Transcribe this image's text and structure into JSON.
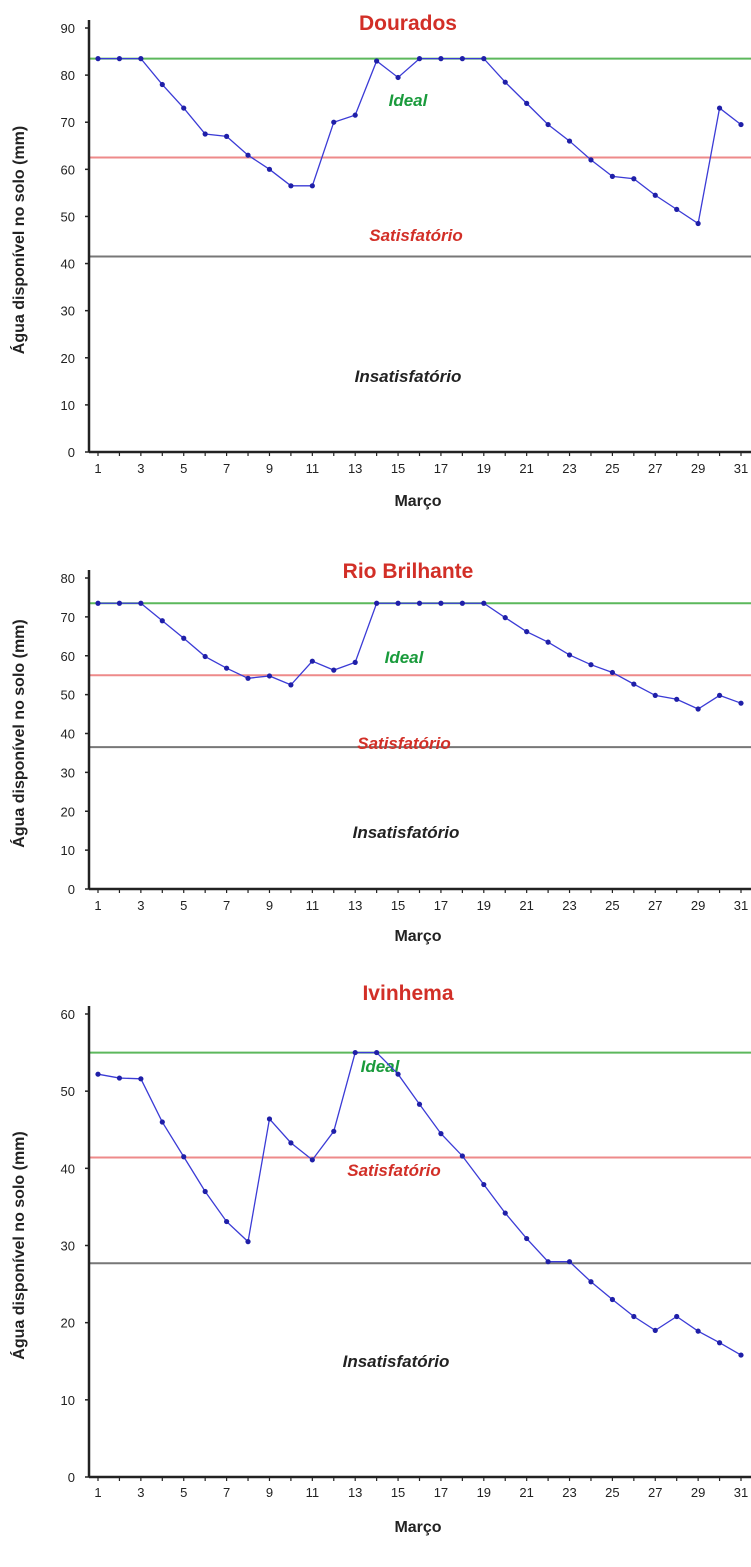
{
  "chart_data": [
    {
      "type": "line",
      "title": "Dourados",
      "xlabel": "Março",
      "ylabel": "Água disponível no solo (mm)",
      "ylim": [
        0,
        90
      ],
      "yticks": [
        0,
        10,
        20,
        30,
        40,
        50,
        60,
        70,
        80,
        90
      ],
      "xlim": [
        1,
        31
      ],
      "xticks": [
        1,
        3,
        5,
        7,
        9,
        11,
        13,
        15,
        17,
        19,
        21,
        23,
        25,
        27,
        29,
        31
      ],
      "thresholds": [
        {
          "label": "Ideal",
          "value": 83.5,
          "color": "#5cb85c",
          "label_color": "#1a9b3c"
        },
        {
          "label": "Satisfatório",
          "value": 62.5,
          "color": "#ee8a8a",
          "label_color": "#d22f27"
        },
        {
          "label": "Insatisfatório",
          "value": 41.5,
          "color": "#777777",
          "label_color": "#222222"
        }
      ],
      "line_color": "#3b3bd6",
      "title_color": "#d22f27",
      "x": [
        1,
        2,
        3,
        4,
        5,
        6,
        7,
        8,
        9,
        10,
        11,
        12,
        13,
        14,
        15,
        16,
        17,
        18,
        19,
        20,
        21,
        22,
        23,
        24,
        25,
        26,
        27,
        28,
        29,
        30,
        31
      ],
      "values": [
        83.5,
        83.5,
        83.5,
        78,
        73,
        67.5,
        67,
        63,
        60,
        56.5,
        56.5,
        70,
        71.5,
        83,
        79.5,
        83.5,
        83.5,
        83.5,
        83.5,
        78.5,
        74,
        69.5,
        66,
        62,
        58.5,
        58,
        54.5,
        51.5,
        48.5,
        73,
        69.5
      ]
    },
    {
      "type": "line",
      "title": "Rio Brilhante",
      "xlabel": "Março",
      "ylabel": "Água disponível no solo (mm)",
      "ylim": [
        0,
        80
      ],
      "yticks": [
        0,
        10,
        20,
        30,
        40,
        50,
        60,
        70,
        80
      ],
      "xlim": [
        1,
        31
      ],
      "xticks": [
        1,
        3,
        5,
        7,
        9,
        11,
        13,
        15,
        17,
        19,
        21,
        23,
        25,
        27,
        29,
        31
      ],
      "thresholds": [
        {
          "label": "Ideal",
          "value": 73.5,
          "color": "#5cb85c",
          "label_color": "#1a9b3c"
        },
        {
          "label": "Satisfatório",
          "value": 55,
          "color": "#ee8a8a",
          "label_color": "#d22f27"
        },
        {
          "label": "Insatisfatório",
          "value": 36.5,
          "color": "#777777",
          "label_color": "#222222"
        }
      ],
      "line_color": "#3b3bd6",
      "title_color": "#d22f27",
      "x": [
        1,
        2,
        3,
        4,
        5,
        6,
        7,
        8,
        9,
        10,
        11,
        12,
        13,
        14,
        15,
        16,
        17,
        18,
        19,
        20,
        21,
        22,
        23,
        24,
        25,
        26,
        27,
        28,
        29,
        30,
        31
      ],
      "values": [
        73.5,
        73.5,
        73.5,
        69,
        64.5,
        59.8,
        56.8,
        54.2,
        54.8,
        52.5,
        58.6,
        56.3,
        58.3,
        73.5,
        73.5,
        73.5,
        73.5,
        73.5,
        73.5,
        69.8,
        66.2,
        63.5,
        60.2,
        57.7,
        55.7,
        52.7,
        49.8,
        48.8,
        46.3,
        49.8,
        47.8
      ]
    },
    {
      "type": "line",
      "title": "Ivinhema",
      "xlabel": "Março",
      "ylabel": "Água disponível no solo (mm)",
      "ylim": [
        0,
        60
      ],
      "yticks": [
        0,
        10,
        20,
        30,
        40,
        50,
        60
      ],
      "xlim": [
        1,
        31
      ],
      "xticks": [
        1,
        3,
        5,
        7,
        9,
        11,
        13,
        15,
        17,
        19,
        21,
        23,
        25,
        27,
        29,
        31
      ],
      "thresholds": [
        {
          "label": "Ideal",
          "value": 55,
          "color": "#5cb85c",
          "label_color": "#1a9b3c"
        },
        {
          "label": "Satisfatório",
          "value": 41.4,
          "color": "#ee8a8a",
          "label_color": "#d22f27"
        },
        {
          "label": "Insatisfatório",
          "value": 27.7,
          "color": "#777777",
          "label_color": "#222222"
        }
      ],
      "line_color": "#3b3bd6",
      "title_color": "#d22f27",
      "x": [
        1,
        2,
        3,
        4,
        5,
        6,
        7,
        8,
        9,
        10,
        11,
        12,
        13,
        14,
        15,
        16,
        17,
        18,
        19,
        20,
        21,
        22,
        23,
        24,
        25,
        26,
        27,
        28,
        29,
        30,
        31
      ],
      "values": [
        52.2,
        51.7,
        51.6,
        46,
        41.5,
        37,
        33.1,
        30.5,
        46.4,
        43.3,
        41.1,
        44.8,
        55,
        55,
        52.2,
        48.3,
        44.5,
        41.6,
        37.9,
        34.2,
        30.9,
        27.9,
        27.9,
        25.3,
        23,
        20.8,
        19,
        20.8,
        18.9,
        17.4,
        15.8
      ]
    }
  ]
}
